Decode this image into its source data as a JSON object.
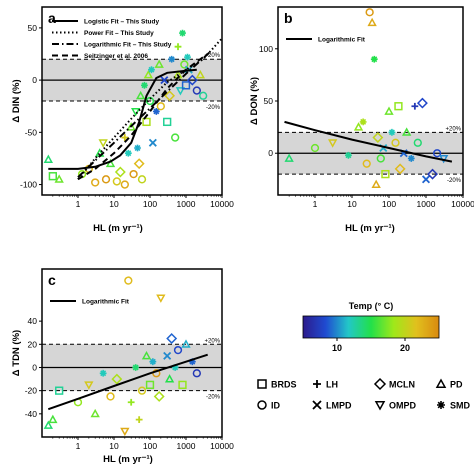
{
  "chart_data": [
    {
      "panel": "a",
      "type": "scatter",
      "xlabel": "HL (m yr⁻¹)",
      "ylabel": "Δ DIN (%)",
      "xscale": "log",
      "xlim": [
        0.1,
        10000
      ],
      "ylim": [
        -110,
        70
      ],
      "xticks": [
        "1",
        "10",
        "100",
        "1000",
        "10000"
      ],
      "yticks": [
        "-100",
        "-50",
        "0",
        "50"
      ],
      "band": [
        -20,
        20
      ],
      "band_labels": [
        "+20%",
        "-20%"
      ],
      "legend_position": "top-left",
      "legend": [
        {
          "label": "Logistic Fit – This Study",
          "style": "solid"
        },
        {
          "label": "Power Fit – This Study",
          "style": "dotted"
        },
        {
          "label": "Logarithmic Fit – This Study",
          "style": "dashdot"
        },
        {
          "label": "Seitzinger et al. 2006",
          "style": "dashed"
        }
      ],
      "fits": [
        {
          "style": "solid",
          "points": [
            [
              0.15,
              -85
            ],
            [
              1,
              -85
            ],
            [
              3,
              -83
            ],
            [
              8,
              -78
            ],
            [
              15,
              -72
            ],
            [
              30,
              -60
            ],
            [
              50,
              -40
            ],
            [
              80,
              -15
            ],
            [
              150,
              2
            ],
            [
              300,
              7
            ],
            [
              1000,
              9
            ],
            [
              2000,
              10
            ]
          ]
        },
        {
          "style": "dotted",
          "points": [
            [
              1,
              -95
            ],
            [
              3,
              -75
            ],
            [
              10,
              -55
            ],
            [
              30,
              -37
            ],
            [
              100,
              -18
            ],
            [
              300,
              -2
            ],
            [
              1000,
              10
            ],
            [
              3000,
              20
            ],
            [
              10000,
              40
            ]
          ]
        },
        {
          "style": "dashdot",
          "points": [
            [
              1,
              -93
            ],
            [
              3,
              -77
            ],
            [
              10,
              -60
            ],
            [
              30,
              -44
            ],
            [
              100,
              -27
            ],
            [
              300,
              -11
            ],
            [
              1000,
              6
            ],
            [
              5000,
              28
            ]
          ]
        },
        {
          "style": "dashed",
          "points": [
            [
              1,
              -95
            ],
            [
              3,
              -85
            ],
            [
              10,
              -70
            ],
            [
              30,
              -53
            ],
            [
              100,
              -30
            ],
            [
              300,
              -8
            ],
            [
              1000,
              10
            ],
            [
              3000,
              22
            ]
          ]
        }
      ],
      "points": [
        {
          "x": 0.15,
          "y": -76,
          "m": "PD",
          "t": 14
        },
        {
          "x": 0.2,
          "y": -92,
          "m": "BRDS",
          "t": 16
        },
        {
          "x": 0.3,
          "y": -95,
          "m": "PD",
          "t": 17
        },
        {
          "x": 1.3,
          "y": -90,
          "m": "ID",
          "t": 18
        },
        {
          "x": 2,
          "y": -85,
          "m": "ID",
          "t": 22
        },
        {
          "x": 3,
          "y": -98,
          "m": "ID",
          "t": 23
        },
        {
          "x": 4,
          "y": -70,
          "m": "PD",
          "t": 15
        },
        {
          "x": 5,
          "y": -60,
          "m": "OMPD",
          "t": 20
        },
        {
          "x": 6,
          "y": -95,
          "m": "ID",
          "t": 24
        },
        {
          "x": 8,
          "y": -80,
          "m": "PD",
          "t": 16
        },
        {
          "x": 12,
          "y": -97,
          "m": "ID",
          "t": 21
        },
        {
          "x": 15,
          "y": -88,
          "m": "MCLN",
          "t": 19
        },
        {
          "x": 20,
          "y": -100,
          "m": "ID",
          "t": 23
        },
        {
          "x": 20,
          "y": -55,
          "m": "LH",
          "t": 21
        },
        {
          "x": 25,
          "y": -70,
          "m": "SMD",
          "t": 12
        },
        {
          "x": 30,
          "y": -45,
          "m": "PD",
          "t": 17
        },
        {
          "x": 35,
          "y": -90,
          "m": "ID",
          "t": 24
        },
        {
          "x": 40,
          "y": -30,
          "m": "OMPD",
          "t": 15
        },
        {
          "x": 45,
          "y": -65,
          "m": "SMD",
          "t": 11
        },
        {
          "x": 50,
          "y": -80,
          "m": "MCLN",
          "t": 22
        },
        {
          "x": 55,
          "y": -15,
          "m": "PD",
          "t": 16
        },
        {
          "x": 60,
          "y": -95,
          "m": "ID",
          "t": 20
        },
        {
          "x": 70,
          "y": -5,
          "m": "SMD",
          "t": 14
        },
        {
          "x": 80,
          "y": -40,
          "m": "BRDS",
          "t": 19
        },
        {
          "x": 90,
          "y": 5,
          "m": "PD",
          "t": 18
        },
        {
          "x": 100,
          "y": -20,
          "m": "ID",
          "t": 15
        },
        {
          "x": 110,
          "y": 10,
          "m": "SMD",
          "t": 12
        },
        {
          "x": 120,
          "y": -60,
          "m": "LMPD",
          "t": 10
        },
        {
          "x": 150,
          "y": -30,
          "m": "SMD",
          "t": 9
        },
        {
          "x": 180,
          "y": 15,
          "m": "PD",
          "t": 17
        },
        {
          "x": 200,
          "y": -25,
          "m": "ID",
          "t": 22
        },
        {
          "x": 250,
          "y": 0,
          "m": "LMPD",
          "t": 8
        },
        {
          "x": 300,
          "y": -40,
          "m": "BRDS",
          "t": 13
        },
        {
          "x": 350,
          "y": -15,
          "m": "MCLN",
          "t": 21
        },
        {
          "x": 400,
          "y": 20,
          "m": "SMD",
          "t": 10
        },
        {
          "x": 500,
          "y": -55,
          "m": "ID",
          "t": 16
        },
        {
          "x": 600,
          "y": 5,
          "m": "PD",
          "t": 19
        },
        {
          "x": 700,
          "y": -10,
          "m": "OMPD",
          "t": 12
        },
        {
          "x": 800,
          "y": 45,
          "m": "SMD",
          "t": 14
        },
        {
          "x": 900,
          "y": 15,
          "m": "ID",
          "t": 17
        },
        {
          "x": 1000,
          "y": -5,
          "m": "BRDS",
          "t": 9
        },
        {
          "x": 1200,
          "y": 10,
          "m": "LMPD",
          "t": 11
        },
        {
          "x": 1500,
          "y": 0,
          "m": "MCLN",
          "t": 8
        },
        {
          "x": 2000,
          "y": -10,
          "m": "ID",
          "t": 7
        },
        {
          "x": 2500,
          "y": 5,
          "m": "PD",
          "t": 20
        },
        {
          "x": 600,
          "y": 32,
          "m": "LH",
          "t": 18
        },
        {
          "x": 1100,
          "y": 22,
          "m": "SMD",
          "t": 12
        },
        {
          "x": 3000,
          "y": -15,
          "m": "ID",
          "t": 13
        }
      ]
    },
    {
      "panel": "b",
      "type": "scatter",
      "xlabel": "HL (m yr⁻¹)",
      "ylabel": "Δ DON (%)",
      "xscale": "log",
      "xlim": [
        0.1,
        10000
      ],
      "ylim": [
        -40,
        140
      ],
      "xticks": [
        "1",
        "10",
        "100",
        "1000",
        "10000"
      ],
      "yticks": [
        "0",
        "50",
        "100"
      ],
      "band": [
        -20,
        20
      ],
      "band_labels": [
        "+20%",
        "-20%"
      ],
      "legend_position": "top-left",
      "legend": [
        {
          "label": "Logarithmic Fit",
          "style": "solid"
        }
      ],
      "fits": [
        {
          "style": "solid",
          "points": [
            [
              0.15,
              30
            ],
            [
              1,
              22
            ],
            [
              10,
              13
            ],
            [
              100,
              5
            ],
            [
              1000,
              -3
            ],
            [
              5000,
              -8
            ]
          ]
        }
      ],
      "points": [
        {
          "x": 0.2,
          "y": -5,
          "m": "PD",
          "t": 14
        },
        {
          "x": 1,
          "y": 5,
          "m": "ID",
          "t": 17
        },
        {
          "x": 3,
          "y": 10,
          "m": "OMPD",
          "t": 21
        },
        {
          "x": 8,
          "y": -2,
          "m": "SMD",
          "t": 13
        },
        {
          "x": 15,
          "y": 25,
          "m": "PD",
          "t": 18
        },
        {
          "x": 25,
          "y": -10,
          "m": "ID",
          "t": 22
        },
        {
          "x": 30,
          "y": 135,
          "m": "ID",
          "t": 24
        },
        {
          "x": 35,
          "y": 125,
          "m": "PD",
          "t": 23
        },
        {
          "x": 40,
          "y": 90,
          "m": "SMD",
          "t": 15
        },
        {
          "x": 50,
          "y": 15,
          "m": "MCLN",
          "t": 20
        },
        {
          "x": 60,
          "y": -5,
          "m": "ID",
          "t": 16
        },
        {
          "x": 70,
          "y": 5,
          "m": "LMPD",
          "t": 11
        },
        {
          "x": 80,
          "y": -20,
          "m": "BRDS",
          "t": 19
        },
        {
          "x": 100,
          "y": 40,
          "m": "PD",
          "t": 17
        },
        {
          "x": 120,
          "y": 20,
          "m": "SMD",
          "t": 12
        },
        {
          "x": 150,
          "y": 10,
          "m": "ID",
          "t": 21
        },
        {
          "x": 180,
          "y": 45,
          "m": "BRDS",
          "t": 18
        },
        {
          "x": 200,
          "y": -15,
          "m": "MCLN",
          "t": 22
        },
        {
          "x": 250,
          "y": 0,
          "m": "LMPD",
          "t": 9
        },
        {
          "x": 300,
          "y": 20,
          "m": "PD",
          "t": 16
        },
        {
          "x": 400,
          "y": -5,
          "m": "SMD",
          "t": 10
        },
        {
          "x": 500,
          "y": 45,
          "m": "LH",
          "t": 7
        },
        {
          "x": 600,
          "y": 10,
          "m": "ID",
          "t": 14
        },
        {
          "x": 800,
          "y": 48,
          "m": "MCLN",
          "t": 8
        },
        {
          "x": 1000,
          "y": -25,
          "m": "LMPD",
          "t": 9
        },
        {
          "x": 1500,
          "y": -20,
          "m": "MCLN",
          "t": 7
        },
        {
          "x": 2000,
          "y": 0,
          "m": "ID",
          "t": 8
        },
        {
          "x": 3000,
          "y": -5,
          "m": "OMPD",
          "t": 10
        },
        {
          "x": 20,
          "y": 30,
          "m": "SMD",
          "t": 19
        },
        {
          "x": 45,
          "y": -30,
          "m": "PD",
          "t": 23
        }
      ]
    },
    {
      "panel": "c",
      "type": "scatter",
      "xlabel": "HL (m yr⁻¹)",
      "ylabel": "Δ TDN (%)",
      "xscale": "log",
      "xlim": [
        0.1,
        10000
      ],
      "ylim": [
        -60,
        85
      ],
      "xticks": [
        "1",
        "10",
        "100",
        "1000",
        "10000"
      ],
      "yticks": [
        "-40",
        "-20",
        "0",
        "20",
        "40"
      ],
      "band": [
        -20,
        20
      ],
      "band_labels": [
        "+20%",
        "-20%"
      ],
      "legend_position": "top-left",
      "legend": [
        {
          "label": "Logarithmic Fit",
          "style": "solid"
        }
      ],
      "fits": [
        {
          "style": "solid",
          "points": [
            [
              0.15,
              -36
            ],
            [
              1,
              -27
            ],
            [
              10,
              -16
            ],
            [
              100,
              -5
            ],
            [
              1000,
              5
            ],
            [
              4000,
              11
            ]
          ]
        }
      ],
      "points": [
        {
          "x": 0.15,
          "y": -50,
          "m": "PD",
          "t": 14
        },
        {
          "x": 0.2,
          "y": -45,
          "m": "PD",
          "t": 16
        },
        {
          "x": 0.3,
          "y": -20,
          "m": "BRDS",
          "t": 13
        },
        {
          "x": 1,
          "y": -30,
          "m": "ID",
          "t": 18
        },
        {
          "x": 2,
          "y": -15,
          "m": "OMPD",
          "t": 21
        },
        {
          "x": 3,
          "y": -40,
          "m": "PD",
          "t": 17
        },
        {
          "x": 5,
          "y": -5,
          "m": "SMD",
          "t": 12
        },
        {
          "x": 8,
          "y": -25,
          "m": "ID",
          "t": 22
        },
        {
          "x": 12,
          "y": -10,
          "m": "MCLN",
          "t": 19
        },
        {
          "x": 20,
          "y": -55,
          "m": "OMPD",
          "t": 23
        },
        {
          "x": 25,
          "y": 75,
          "m": "ID",
          "t": 22
        },
        {
          "x": 30,
          "y": -30,
          "m": "LH",
          "t": 18
        },
        {
          "x": 40,
          "y": 0,
          "m": "SMD",
          "t": 14
        },
        {
          "x": 50,
          "y": -45,
          "m": "LH",
          "t": 20
        },
        {
          "x": 60,
          "y": -20,
          "m": "ID",
          "t": 21
        },
        {
          "x": 80,
          "y": 10,
          "m": "PD",
          "t": 16
        },
        {
          "x": 100,
          "y": -15,
          "m": "BRDS",
          "t": 17
        },
        {
          "x": 120,
          "y": 5,
          "m": "SMD",
          "t": 11
        },
        {
          "x": 150,
          "y": -5,
          "m": "ID",
          "t": 24
        },
        {
          "x": 180,
          "y": -25,
          "m": "MCLN",
          "t": 19
        },
        {
          "x": 200,
          "y": 60,
          "m": "OMPD",
          "t": 22
        },
        {
          "x": 300,
          "y": 10,
          "m": "LMPD",
          "t": 10
        },
        {
          "x": 350,
          "y": -10,
          "m": "PD",
          "t": 15
        },
        {
          "x": 400,
          "y": 25,
          "m": "MCLN",
          "t": 9
        },
        {
          "x": 500,
          "y": 0,
          "m": "SMD",
          "t": 12
        },
        {
          "x": 600,
          "y": 15,
          "m": "ID",
          "t": 8
        },
        {
          "x": 800,
          "y": -15,
          "m": "BRDS",
          "t": 18
        },
        {
          "x": 1000,
          "y": 20,
          "m": "PD",
          "t": 11
        },
        {
          "x": 1500,
          "y": 5,
          "m": "SMD",
          "t": 9
        },
        {
          "x": 2000,
          "y": -5,
          "m": "ID",
          "t": 7
        }
      ]
    }
  ],
  "colorbar": {
    "title": "Temp (° C)",
    "ticks": [
      10,
      20
    ],
    "range": [
      5,
      25
    ],
    "stops": [
      "#2c1b8c",
      "#1f4bd1",
      "#22c7c8",
      "#22e04a",
      "#9fe81a",
      "#e1c01d",
      "#d98a10"
    ]
  },
  "shape_legend": [
    {
      "marker": "BRDS",
      "label": "BRDS"
    },
    {
      "marker": "LH",
      "label": "LH"
    },
    {
      "marker": "MCLN",
      "label": "MCLN"
    },
    {
      "marker": "PD",
      "label": "PD"
    },
    {
      "marker": "ID",
      "label": "ID"
    },
    {
      "marker": "LMPD",
      "label": "LMPD"
    },
    {
      "marker": "OMPD",
      "label": "OMPD"
    },
    {
      "marker": "SMD",
      "label": "SMD"
    }
  ]
}
